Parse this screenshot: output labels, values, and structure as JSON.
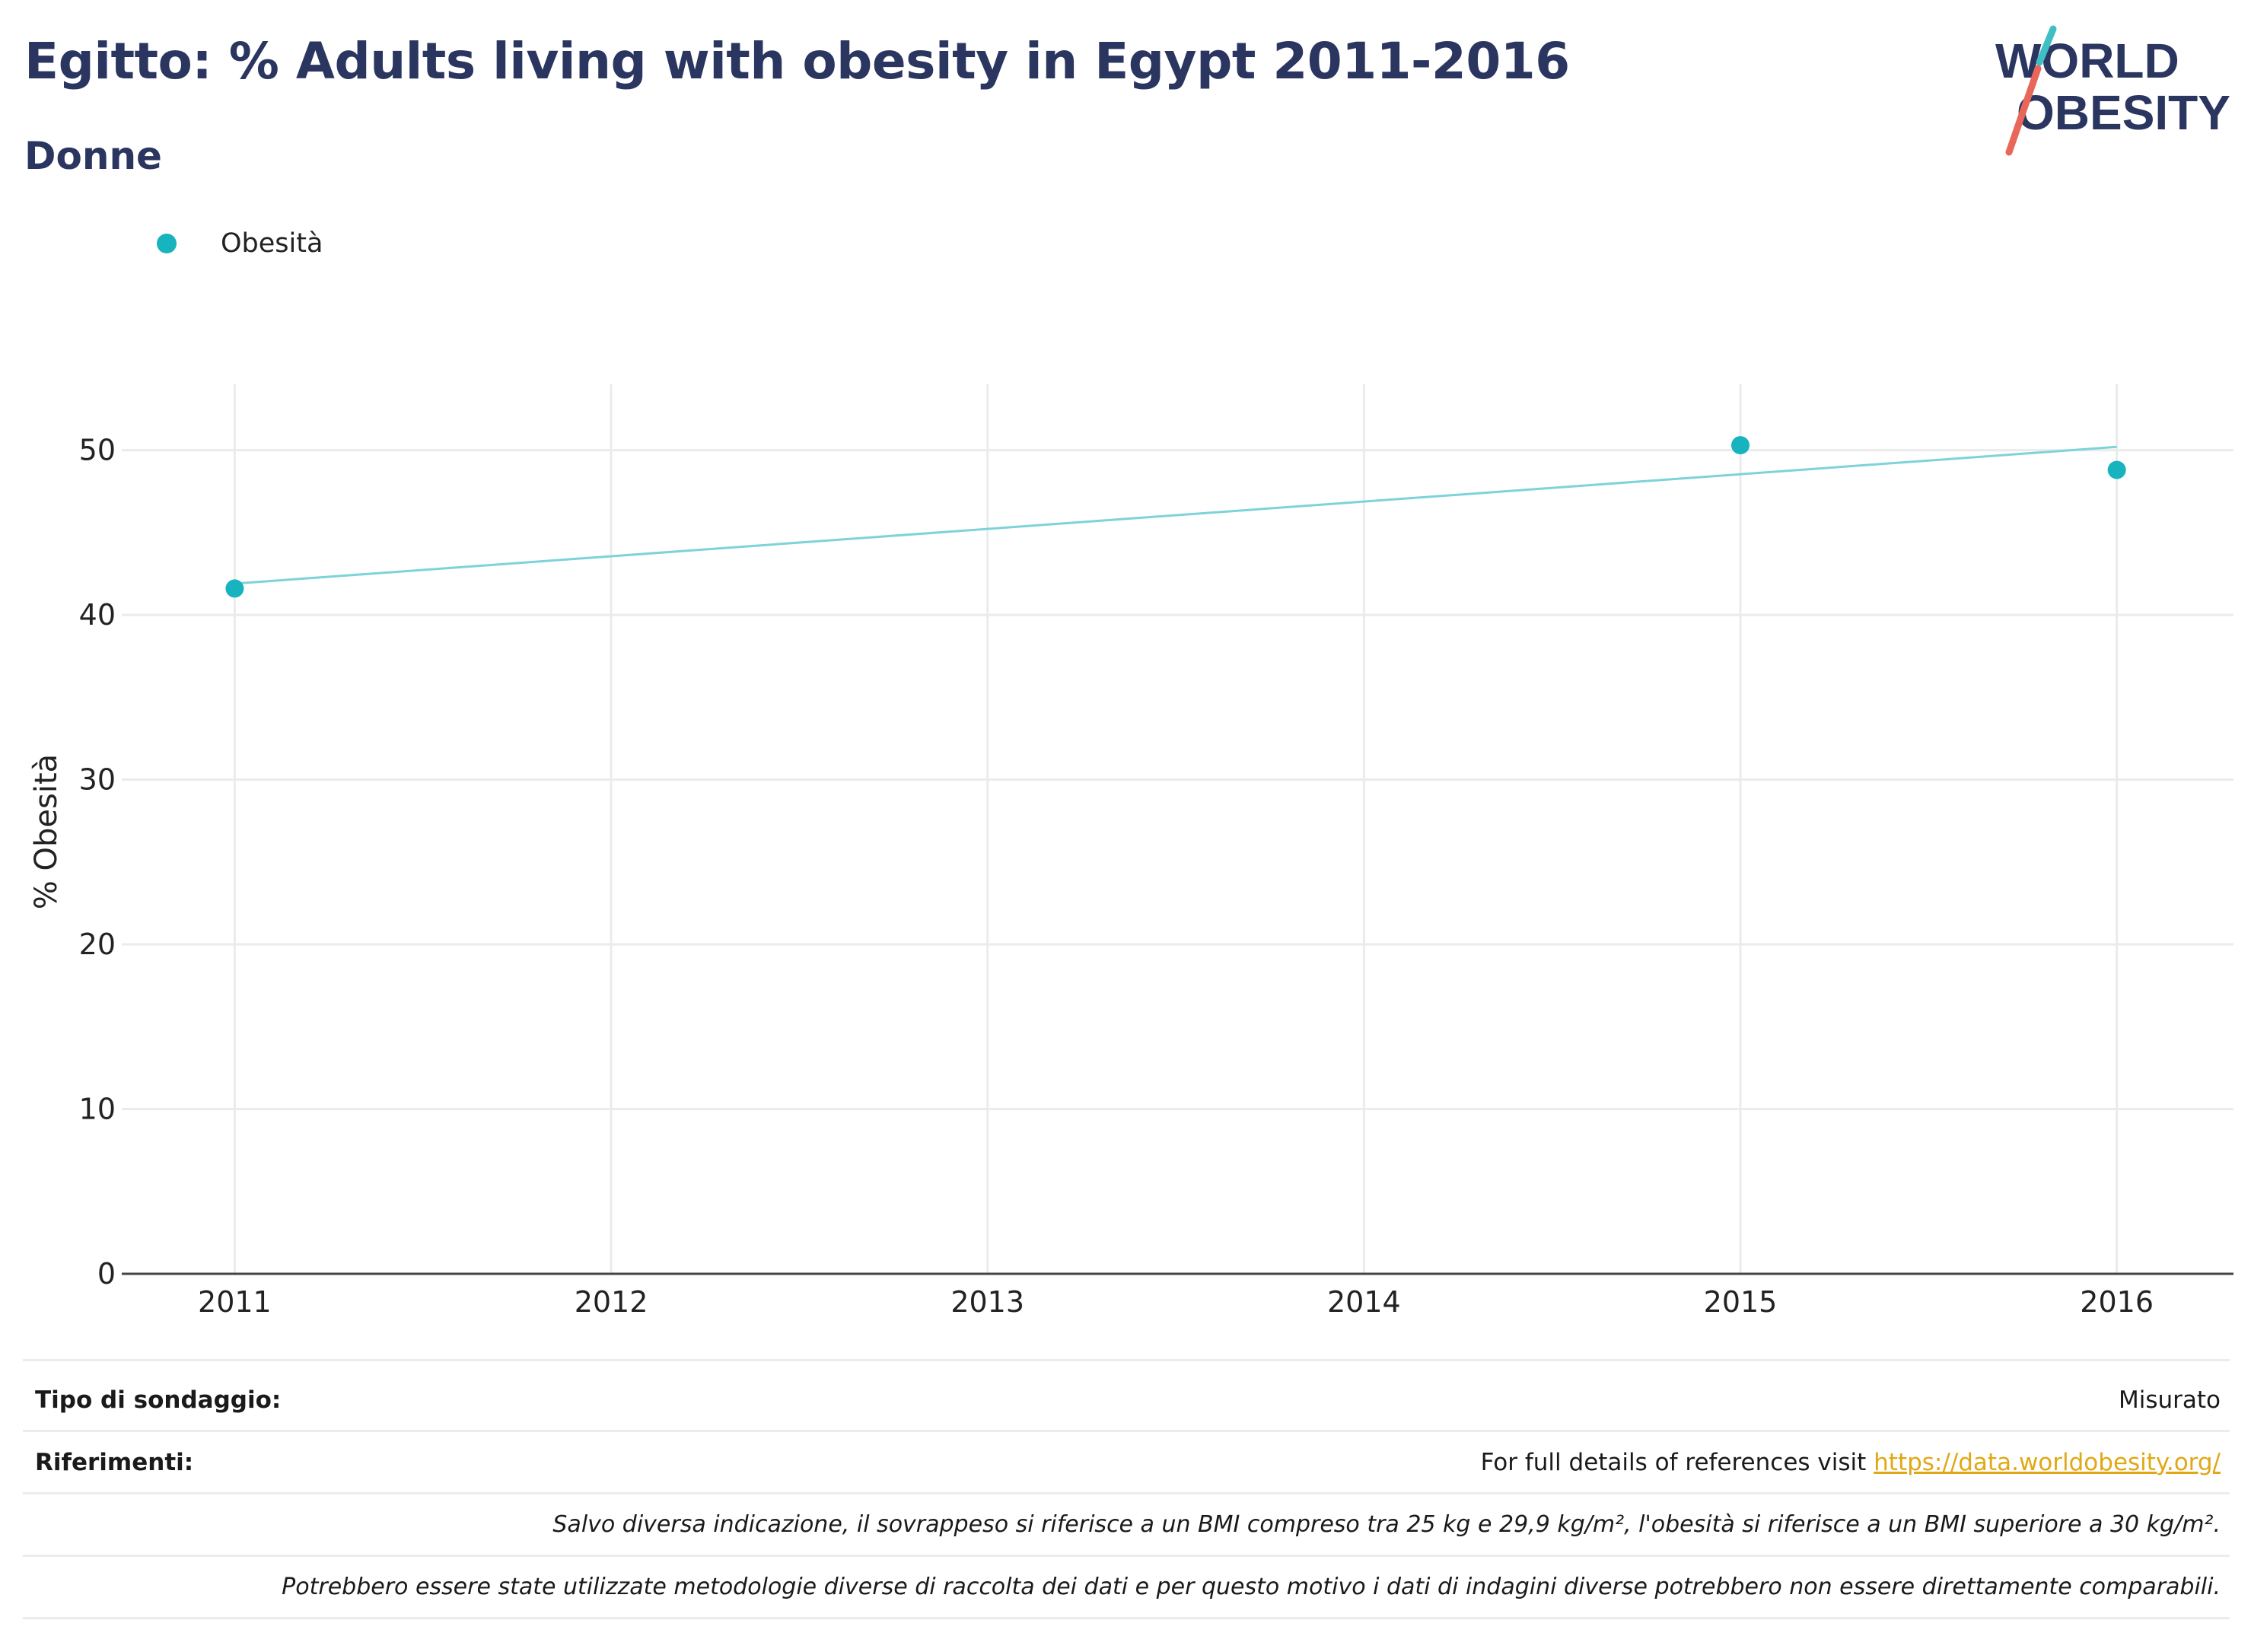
{
  "title": "Egitto: % Adults living with obesity in Egypt 2011-2016",
  "subtitle": "Donne",
  "logo": {
    "line1": "WORLD",
    "line2": "OBESITY"
  },
  "colors": {
    "accent": "#17b3be",
    "trend": "#7dd3d8",
    "title": "#2a3560",
    "link": "#e0a814",
    "logo_teal": "#3fbfc4",
    "logo_red": "#e8675a"
  },
  "chart_data": {
    "type": "scatter",
    "legend_placement": "top-left",
    "grid": true,
    "series": [
      {
        "name": "Obesità",
        "x": [
          2011,
          2015,
          2016
        ],
        "values": [
          41.6,
          50.3,
          48.8
        ]
      }
    ],
    "trend_line": {
      "x": [
        2011,
        2016
      ],
      "values": [
        41.9,
        50.2
      ]
    },
    "x_ticks": [
      "2011",
      "2012",
      "2013",
      "2014",
      "2015",
      "2016"
    ],
    "y_ticks": [
      "0",
      "10",
      "20",
      "30",
      "40",
      "50"
    ],
    "xlim": [
      2010.7,
      2016.31
    ],
    "ylim": [
      0,
      54
    ],
    "ylabel": "% Obesità",
    "xlabel": ""
  },
  "footer": {
    "survey_label": "Tipo di sondaggio:",
    "survey_value": "Misurato",
    "refs_label": "Riferimenti:",
    "refs_text": "For full details of references visit ",
    "refs_link": "https://data.worldobesity.org/",
    "note1": "Salvo diversa indicazione, il sovrappeso si riferisce a un BMI compreso tra 25 kg e 29,9 kg/m², l'obesità si riferisce a un BMI superiore a 30 kg/m².",
    "note2": "Potrebbero essere state utilizzate metodologie diverse di raccolta dei dati e per questo motivo i dati di indagini diverse potrebbero non essere direttamente comparabili."
  }
}
